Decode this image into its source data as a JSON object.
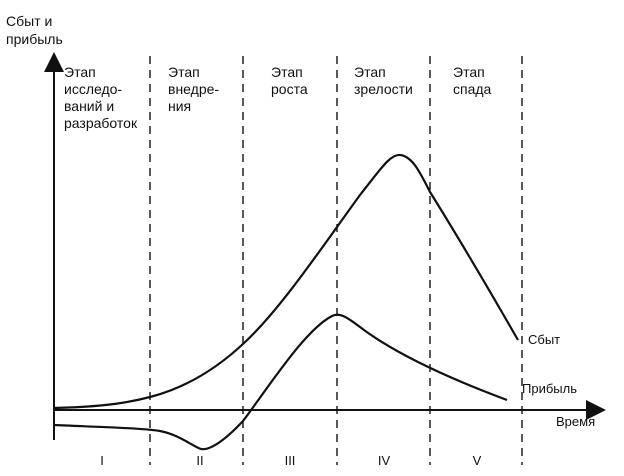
{
  "axes": {
    "y_label": "Сбыт и\nприбыль",
    "x_label": "Время"
  },
  "stages": [
    {
      "label": "Этап\nисследо-\nваний и\nразработок",
      "numeral": "I"
    },
    {
      "label": "Этап\nвнедре-\nния",
      "numeral": "II"
    },
    {
      "label": "Этап\nроста",
      "numeral": "III"
    },
    {
      "label": "Этап\nзрелости",
      "numeral": "IV"
    },
    {
      "label": "Этап\nспада",
      "numeral": "V"
    }
  ],
  "curves": {
    "sales_label": "Сбыт",
    "profit_label": "Прибыль"
  },
  "colors": {
    "ink": "#111111",
    "background": "#ffffff"
  }
}
